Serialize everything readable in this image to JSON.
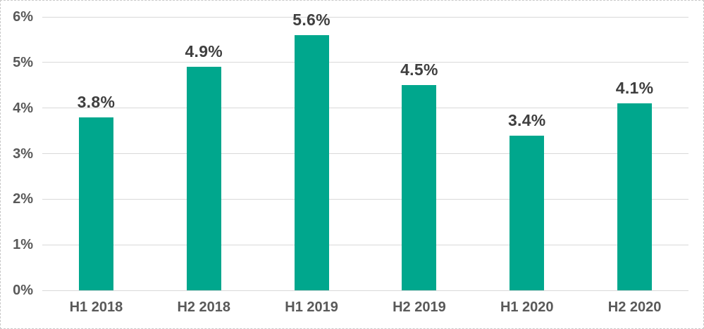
{
  "chart_data": {
    "type": "bar",
    "categories": [
      "H1 2018",
      "H2 2018",
      "H1 2019",
      "H2 2019",
      "H1 2020",
      "H2 2020"
    ],
    "values": [
      3.8,
      4.9,
      5.6,
      4.5,
      3.4,
      4.1
    ],
    "data_labels": [
      "3.8%",
      "4.9%",
      "5.6%",
      "4.5%",
      "3.4%",
      "4.1%"
    ],
    "y_ticks": [
      "0%",
      "1%",
      "2%",
      "3%",
      "4%",
      "5%",
      "6%"
    ],
    "ylim": [
      0,
      6
    ],
    "grid": true,
    "legend": "none",
    "title": "",
    "xlabel": "",
    "ylabel": "",
    "colors": {
      "bar": "#00A78D",
      "gridline": "#D9D9D9",
      "axis_label": "#595959",
      "data_label": "#3F3F3F",
      "background": "#FFFFFF",
      "frame_border": "#C9C9C9"
    }
  }
}
